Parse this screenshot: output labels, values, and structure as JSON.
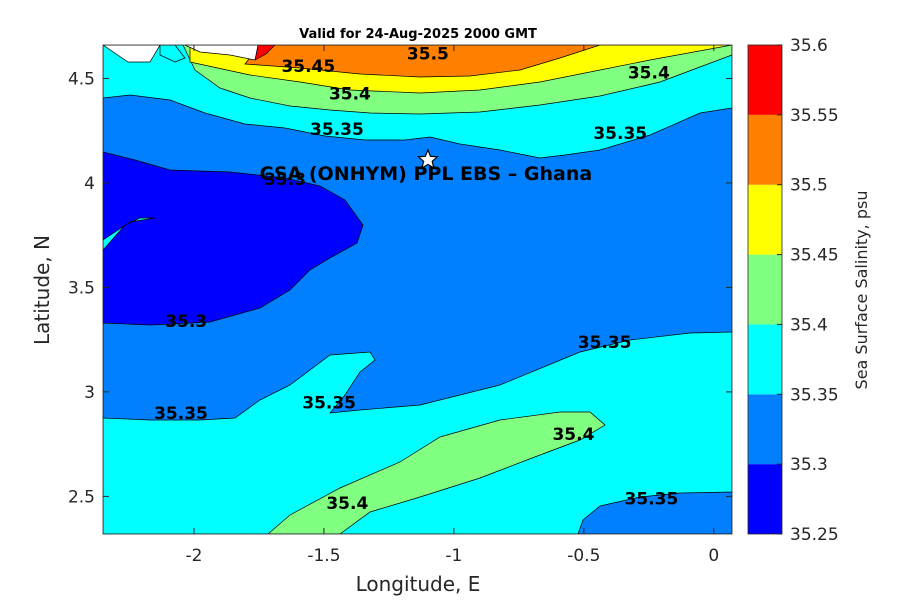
{
  "chart_data": {
    "type": "contour",
    "title": "Valid for 24-Aug-2025 2000 GMT",
    "xlabel": "Longitude, E",
    "ylabel": "Latitude, N",
    "xlim": [
      -2.35,
      0.07
    ],
    "ylim": [
      2.32,
      4.66
    ],
    "xticks": [
      -2,
      -1.5,
      -1,
      -0.5,
      0
    ],
    "xtick_labels": [
      "-2",
      "-1.5",
      "-1",
      "-0.5",
      "0"
    ],
    "yticks": [
      2.5,
      3,
      3.5,
      4,
      4.5
    ],
    "ytick_labels": [
      "2.5",
      "3",
      "3.5",
      "4",
      "4.5"
    ],
    "colorbar": {
      "label": "Sea Surface Salinity, psu",
      "ticks": [
        "35.25",
        "35.3",
        "35.35",
        "35.4",
        "35.45",
        "35.5",
        "35.55",
        "35.6"
      ],
      "range": [
        35.25,
        35.6
      ],
      "colors": [
        "#0000ff",
        "#0080ff",
        "#00ffff",
        "#80ff80",
        "#ffff00",
        "#ff8000",
        "#ff0000"
      ]
    },
    "contour_levels": [
      35.3,
      35.35,
      35.4,
      35.45,
      35.5,
      35.55
    ],
    "contour_labels": [
      {
        "text": "35.5",
        "x": -1.1,
        "y": 4.59
      },
      {
        "text": "35.45",
        "x": -1.56,
        "y": 4.53
      },
      {
        "text": "35.4",
        "x": -1.4,
        "y": 4.4
      },
      {
        "text": "35.4",
        "x": -0.25,
        "y": 4.5
      },
      {
        "text": "35.35",
        "x": -1.45,
        "y": 4.23
      },
      {
        "text": "35.35",
        "x": -0.36,
        "y": 4.21
      },
      {
        "text": "35.3",
        "x": -1.65,
        "y": 3.99
      },
      {
        "text": "35.3",
        "x": -2.03,
        "y": 3.31
      },
      {
        "text": "35.35",
        "x": -0.42,
        "y": 3.21
      },
      {
        "text": "35.35",
        "x": -1.48,
        "y": 2.92
      },
      {
        "text": "35.35",
        "x": -2.05,
        "y": 2.87
      },
      {
        "text": "35.4",
        "x": -0.54,
        "y": 2.77
      },
      {
        "text": "35.4",
        "x": -1.41,
        "y": 2.44
      },
      {
        "text": "35.35",
        "x": -0.24,
        "y": 2.46
      }
    ],
    "site": {
      "label": "CSA (ONHYM) PPL EBS  – Ghana",
      "lon": -1.1,
      "lat": 4.11
    },
    "grid": false
  }
}
